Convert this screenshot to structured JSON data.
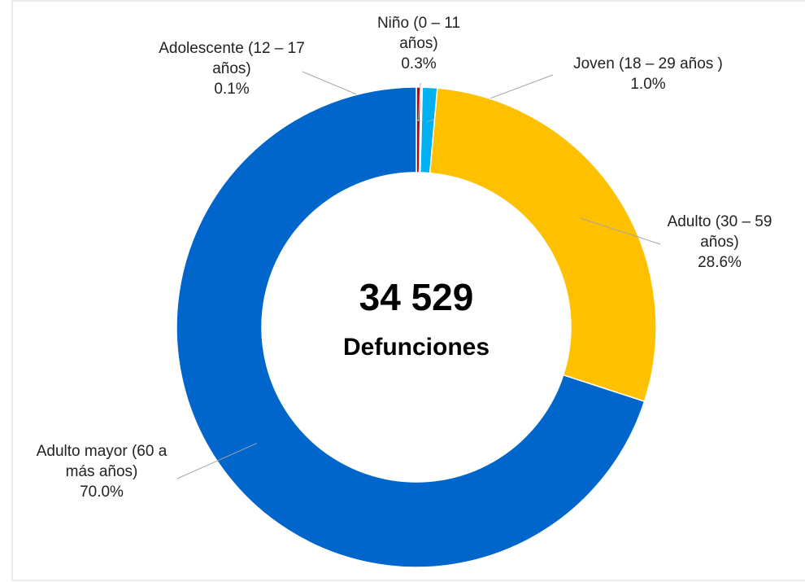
{
  "chart_data": {
    "type": "donut",
    "center_value": "34 529",
    "center_label": "Defunciones",
    "categories": [
      "Niño (0 – 11 años)",
      "Adolescente (12 – 17 años)",
      "Joven (18 – 29 años )",
      "Adulto (30 – 59 años)",
      "Adulto mayor (60 a más años)"
    ],
    "values": [
      0.3,
      0.1,
      1.0,
      28.6,
      70.0
    ],
    "value_labels": [
      "0.3%",
      "0.1%",
      "1.0%",
      "28.6%",
      "70.0%"
    ],
    "colors": [
      "#c00000",
      "#e7e6e6",
      "#00b0f0",
      "#ffc000",
      "#0066cc"
    ]
  }
}
